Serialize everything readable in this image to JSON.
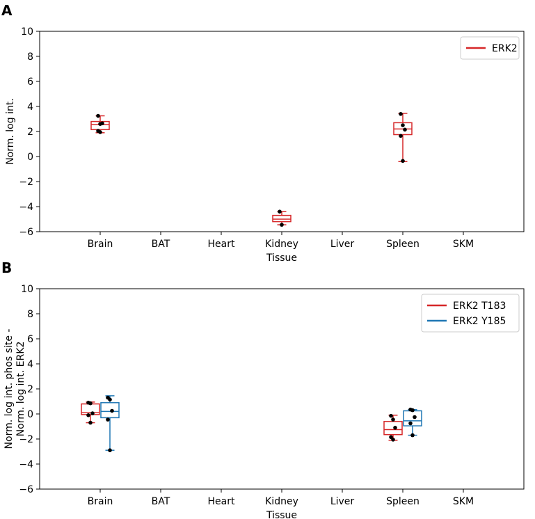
{
  "chart_data": [
    {
      "panel_label": "A",
      "type": "box",
      "categories": [
        "Brain",
        "BAT",
        "Heart",
        "Kidney",
        "Liver",
        "Spleen",
        "SKM"
      ],
      "xlabel": "Tissue",
      "ylabel": "Norm. log int.",
      "ylim": [
        -6,
        10
      ],
      "yticks": [
        -6,
        -4,
        -2,
        0,
        2,
        4,
        6,
        8,
        10
      ],
      "legend_position": "top-right",
      "series": [
        {
          "name": "ERK2",
          "color": "#d62728",
          "boxes": [
            {
              "category": "Brain",
              "whisker_low": 1.9,
              "q1": 2.15,
              "median": 2.55,
              "q3": 2.8,
              "whisker_high": 3.25,
              "points": [
                3.25,
                2.6,
                2.65,
                2.05,
                1.95
              ]
            },
            {
              "category": "Kidney",
              "whisker_low": -5.45,
              "q1": -5.2,
              "median": -5.0,
              "q3": -4.7,
              "whisker_high": -4.4,
              "points": [
                -4.4,
                -5.45
              ]
            },
            {
              "category": "Spleen",
              "whisker_low": -0.4,
              "q1": 1.75,
              "median": 2.2,
              "q3": 2.7,
              "whisker_high": 3.45,
              "points": [
                3.4,
                2.5,
                2.15,
                1.65,
                -0.35
              ]
            }
          ]
        }
      ]
    },
    {
      "panel_label": "B",
      "type": "box",
      "categories": [
        "Brain",
        "BAT",
        "Heart",
        "Kidney",
        "Liver",
        "Spleen",
        "SKM"
      ],
      "xlabel": "Tissue",
      "ylabel": [
        "Norm. log int. phos site -",
        "Norm. log int. ERK2"
      ],
      "ylim": [
        -6,
        10
      ],
      "yticks": [
        -6,
        -4,
        -2,
        0,
        2,
        4,
        6,
        8,
        10
      ],
      "legend_position": "top-right",
      "series": [
        {
          "name": "ERK2 T183",
          "color": "#d62728",
          "boxes": [
            {
              "category": "Brain",
              "whisker_low": -0.7,
              "q1": -0.05,
              "median": 0.1,
              "q3": 0.8,
              "whisker_high": 0.95,
              "points": [
                0.9,
                0.85,
                0.05,
                -0.1,
                -0.7
              ]
            },
            {
              "category": "Spleen",
              "whisker_low": -2.1,
              "q1": -1.65,
              "median": -1.25,
              "q3": -0.6,
              "whisker_high": -0.1,
              "points": [
                -0.15,
                -0.45,
                -1.1,
                -1.85,
                -2.05
              ]
            }
          ]
        },
        {
          "name": "ERK2 Y185",
          "color": "#1f77b4",
          "boxes": [
            {
              "category": "Brain",
              "whisker_low": -2.9,
              "q1": -0.3,
              "median": 0.2,
              "q3": 0.9,
              "whisker_high": 1.45,
              "points": [
                1.3,
                1.15,
                0.25,
                -0.45,
                -2.9
              ]
            },
            {
              "category": "Spleen",
              "whisker_low": -1.7,
              "q1": -0.95,
              "median": -0.55,
              "q3": 0.25,
              "whisker_high": 0.35,
              "points": [
                0.35,
                0.3,
                -0.25,
                -0.75,
                -1.7
              ]
            }
          ]
        }
      ]
    }
  ]
}
